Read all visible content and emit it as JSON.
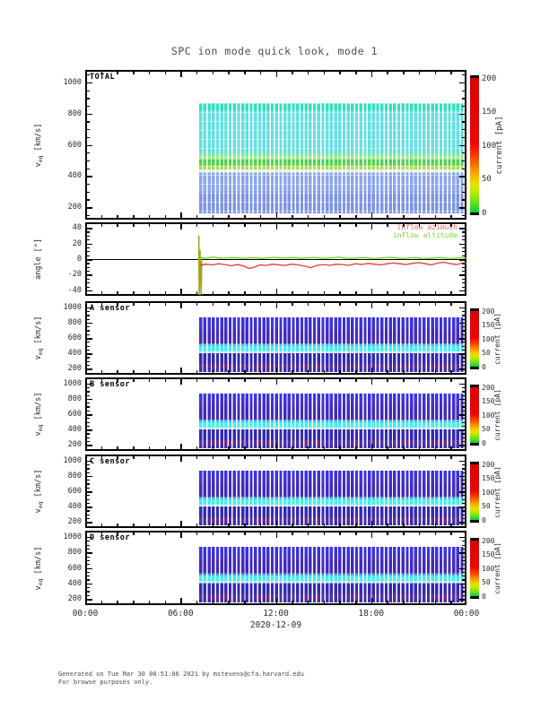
{
  "title": "SPC ion mode quick look, mode 1",
  "footer": {
    "line1": "Generated on Tue Mar 30 00:51:06 2021 by mstevens@cfa.harvard.edu",
    "line2": "For browse purposes only."
  },
  "chart_data": {
    "type": "heatmap",
    "title": "SPC ion mode quick look, mode 1",
    "x": {
      "ticks_hours": [
        0,
        6,
        12,
        18,
        24
      ],
      "tick_labels": [
        "00:00",
        "06:00",
        "12:00",
        "18:00",
        "00:00"
      ],
      "minor_step_hours": 1,
      "date_label": "2020-12-09",
      "data_start_hour": 7.17,
      "data_end_hour": 24
    },
    "colorbar": {
      "label": "current [pA]",
      "ticks": [
        200,
        150,
        100,
        50,
        0
      ],
      "vmin": 0,
      "vmax": 200,
      "stops": [
        [
          0,
          "#00d23c"
        ],
        [
          0.08,
          "#70e316"
        ],
        [
          0.16,
          "#c3ea00"
        ],
        [
          0.22,
          "#f2dc00"
        ],
        [
          0.3,
          "#fa9f00"
        ],
        [
          0.4,
          "#f84b00"
        ],
        [
          0.52,
          "#ee0404"
        ],
        [
          1,
          "#da0202"
        ]
      ]
    },
    "panels": [
      {
        "id": "total",
        "kind": "heatmap",
        "name": "TOTAL",
        "ylabel": {
          "pre": "v",
          "sub": "eq",
          "post": " [km/s]"
        },
        "ylim": [
          120,
          1080
        ],
        "yticks": [
          1000,
          800,
          600,
          400,
          200
        ],
        "yminor": 50,
        "has_colorbar": true,
        "heat": {
          "vtop": 870,
          "vbottom": 160,
          "bands": [
            {
              "v0": 870,
              "v1": 825,
              "color": "#2fe0b8"
            },
            {
              "v0": 825,
              "v1": 545,
              "color": "#62dfe2"
            },
            {
              "v0": 545,
              "v1": 505,
              "color": "#8fe98a"
            },
            {
              "v0": 505,
              "v1": 468,
              "color": "#4ed352"
            },
            {
              "v0": 468,
              "v1": 444,
              "color": "#aade42"
            },
            {
              "v0": 444,
              "v1": 424,
              "color": "#e2f1f2"
            },
            {
              "v0": 424,
              "v1": 300,
              "color": "#8ba5ee"
            },
            {
              "v0": 300,
              "v1": 160,
              "color": "#7b92e6"
            }
          ]
        }
      },
      {
        "id": "angle",
        "kind": "line",
        "name": "",
        "ylabel": {
          "pre": "angle [°]",
          "sub": "",
          "post": ""
        },
        "ylim": [
          -47,
          47
        ],
        "yticks": [
          40,
          20,
          0,
          -20,
          -40
        ],
        "yminor": 5,
        "zero_line": true,
        "legend": [
          {
            "label": "inflow azimuth",
            "color": "#f0685c"
          },
          {
            "label": "inflow altitude",
            "color": "#7fd62c"
          }
        ],
        "series": [
          {
            "name": "startup spike",
            "color": "#a2a51c",
            "width": 1.6,
            "points": [
              [
                7.15,
                30
              ],
              [
                7.18,
                -46
              ],
              [
                7.22,
                12
              ],
              [
                7.3,
                -46
              ],
              [
                7.33,
                -2
              ]
            ]
          },
          {
            "name": "inflow azimuth",
            "color": "#e63a2e",
            "width": 1.3,
            "points": [
              [
                7.2,
                -8
              ],
              [
                7.6,
                -6.5
              ],
              [
                8,
                -7.5
              ],
              [
                8.4,
                -6
              ],
              [
                8.8,
                -7
              ],
              [
                9.2,
                -8.5
              ],
              [
                9.6,
                -7
              ],
              [
                10,
                -9
              ],
              [
                10.3,
                -12
              ],
              [
                10.7,
                -10
              ],
              [
                11,
                -7.5
              ],
              [
                11.4,
                -8
              ],
              [
                11.8,
                -6.5
              ],
              [
                12.2,
                -7.5
              ],
              [
                12.6,
                -8
              ],
              [
                13,
                -6.5
              ],
              [
                13.4,
                -7.5
              ],
              [
                13.8,
                -9
              ],
              [
                14.2,
                -11
              ],
              [
                14.6,
                -8
              ],
              [
                15,
                -7
              ],
              [
                15.4,
                -8
              ],
              [
                15.8,
                -6.5
              ],
              [
                16.2,
                -7
              ],
              [
                16.6,
                -8
              ],
              [
                17,
                -6
              ],
              [
                17.4,
                -7
              ],
              [
                17.8,
                -5.5
              ],
              [
                18.2,
                -6.5
              ],
              [
                18.6,
                -7.5
              ],
              [
                19,
                -6
              ],
              [
                19.4,
                -5
              ],
              [
                19.8,
                -6
              ],
              [
                20.2,
                -7
              ],
              [
                20.6,
                -5.5
              ],
              [
                21,
                -4.5
              ],
              [
                21.4,
                -6
              ],
              [
                21.8,
                -7.5
              ],
              [
                22.2,
                -5
              ],
              [
                22.6,
                -4
              ],
              [
                23,
                -6
              ],
              [
                23.4,
                -7
              ],
              [
                23.7,
                -5
              ],
              [
                24,
                -5.5
              ]
            ]
          },
          {
            "name": "inflow altitude",
            "color": "#70d31c",
            "width": 1.3,
            "points": [
              [
                7.2,
                2
              ],
              [
                7.6,
                1
              ],
              [
                8,
                2.5
              ],
              [
                8.4,
                1.5
              ],
              [
                8.8,
                1
              ],
              [
                9.2,
                2
              ],
              [
                9.6,
                1.5
              ],
              [
                10,
                1
              ],
              [
                10.4,
                2
              ],
              [
                10.8,
                1.5
              ],
              [
                11.2,
                0.8
              ],
              [
                11.6,
                1.8
              ],
              [
                12,
                2.2
              ],
              [
                12.4,
                1.2
              ],
              [
                12.8,
                1.6
              ],
              [
                13.2,
                2
              ],
              [
                13.6,
                1
              ],
              [
                14,
                1.5
              ],
              [
                14.4,
                2.2
              ],
              [
                14.8,
                1.4
              ],
              [
                15.2,
                1
              ],
              [
                15.6,
                1.8
              ],
              [
                16,
                2.4
              ],
              [
                16.4,
                1.2
              ],
              [
                16.8,
                0.8
              ],
              [
                17.2,
                1.6
              ],
              [
                17.6,
                2
              ],
              [
                18,
                1.2
              ],
              [
                18.4,
                1
              ],
              [
                18.8,
                1.8
              ],
              [
                19.2,
                2.2
              ],
              [
                19.6,
                1.4
              ],
              [
                20,
                1
              ],
              [
                20.4,
                1.6
              ],
              [
                20.8,
                2
              ],
              [
                21.2,
                1.2
              ],
              [
                21.6,
                0.8
              ],
              [
                22,
                1.4
              ],
              [
                22.4,
                1.8
              ],
              [
                22.8,
                1.2
              ],
              [
                23.2,
                1
              ],
              [
                23.6,
                1.6
              ],
              [
                24,
                1.2
              ]
            ]
          }
        ]
      },
      {
        "id": "a",
        "kind": "heatmap",
        "name": "A sensor",
        "ylabel": {
          "pre": "v",
          "sub": "eq",
          "post": " [km/s]"
        },
        "ylim": [
          120,
          1080
        ],
        "yticks": [
          1000,
          800,
          600,
          400,
          200
        ],
        "yminor": 50,
        "has_colorbar": true,
        "heat": {
          "vtop": 870,
          "vbottom": 160,
          "bands": [
            {
              "v0": 870,
              "v1": 715,
              "color": "#3b33e0"
            },
            {
              "v0": 715,
              "v1": 530,
              "color": "#3a2cc6"
            },
            {
              "v0": 530,
              "v1": 498,
              "color": "#49bdef"
            },
            {
              "v0": 498,
              "v1": 428,
              "color": "#41f1e6"
            },
            {
              "v0": 428,
              "v1": 406,
              "color": "#d9edf8"
            },
            {
              "v0": 406,
              "v1": 262,
              "color": "#3329b5"
            },
            {
              "v0": 262,
              "v1": 214,
              "color": "#4f2f9e"
            },
            {
              "v0": 214,
              "v1": 160,
              "color": "#392cb2"
            }
          ]
        }
      },
      {
        "id": "b",
        "kind": "heatmap",
        "name": "B sensor",
        "ylabel": {
          "pre": "v",
          "sub": "eq",
          "post": " [km/s]"
        },
        "ylim": [
          120,
          1080
        ],
        "yticks": [
          1000,
          800,
          600,
          400,
          200
        ],
        "yminor": 50,
        "has_colorbar": true,
        "heat": {
          "vtop": 870,
          "vbottom": 160,
          "bands": [
            {
              "v0": 870,
              "v1": 715,
              "color": "#3b33e0"
            },
            {
              "v0": 715,
              "v1": 530,
              "color": "#3a2cc6"
            },
            {
              "v0": 530,
              "v1": 498,
              "color": "#49bdef"
            },
            {
              "v0": 498,
              "v1": 428,
              "color": "#41f1e6"
            },
            {
              "v0": 428,
              "v1": 406,
              "color": "#d9edf8"
            },
            {
              "v0": 406,
              "v1": 262,
              "color": "#3329b5"
            },
            {
              "v0": 262,
              "v1": 214,
              "color": "#4f2f9e"
            },
            {
              "v0": 214,
              "v1": 160,
              "color": "#392cb2"
            }
          ]
        }
      },
      {
        "id": "c",
        "kind": "heatmap",
        "name": "C sensor",
        "ylabel": {
          "pre": "v",
          "sub": "eq",
          "post": " [km/s]"
        },
        "ylim": [
          120,
          1080
        ],
        "yticks": [
          1000,
          800,
          600,
          400,
          200
        ],
        "yminor": 50,
        "has_colorbar": true,
        "heat": {
          "vtop": 870,
          "vbottom": 160,
          "bands": [
            {
              "v0": 870,
              "v1": 715,
              "color": "#3b33e0"
            },
            {
              "v0": 715,
              "v1": 530,
              "color": "#3a2cc6"
            },
            {
              "v0": 530,
              "v1": 498,
              "color": "#49bdef"
            },
            {
              "v0": 498,
              "v1": 428,
              "color": "#41f1e6"
            },
            {
              "v0": 428,
              "v1": 406,
              "color": "#d9edf8"
            },
            {
              "v0": 406,
              "v1": 262,
              "color": "#3329b5"
            },
            {
              "v0": 262,
              "v1": 214,
              "color": "#4f2f9e"
            },
            {
              "v0": 214,
              "v1": 160,
              "color": "#392cb2"
            }
          ]
        }
      },
      {
        "id": "d",
        "kind": "heatmap",
        "name": "D sensor",
        "ylabel": {
          "pre": "v",
          "sub": "eq",
          "post": " [km/s]"
        },
        "ylim": [
          120,
          1080
        ],
        "yticks": [
          1000,
          800,
          600,
          400,
          200
        ],
        "yminor": 50,
        "has_colorbar": true,
        "heat": {
          "vtop": 870,
          "vbottom": 160,
          "bands": [
            {
              "v0": 870,
              "v1": 715,
              "color": "#3b33e0"
            },
            {
              "v0": 715,
              "v1": 530,
              "color": "#3a2cc6"
            },
            {
              "v0": 530,
              "v1": 498,
              "color": "#49bdef"
            },
            {
              "v0": 498,
              "v1": 428,
              "color": "#41f1e6"
            },
            {
              "v0": 428,
              "v1": 406,
              "color": "#d9edf8"
            },
            {
              "v0": 406,
              "v1": 262,
              "color": "#3329b5"
            },
            {
              "v0": 262,
              "v1": 214,
              "color": "#4f2f9e"
            },
            {
              "v0": 214,
              "v1": 160,
              "color": "#392cb2"
            }
          ]
        }
      }
    ]
  }
}
